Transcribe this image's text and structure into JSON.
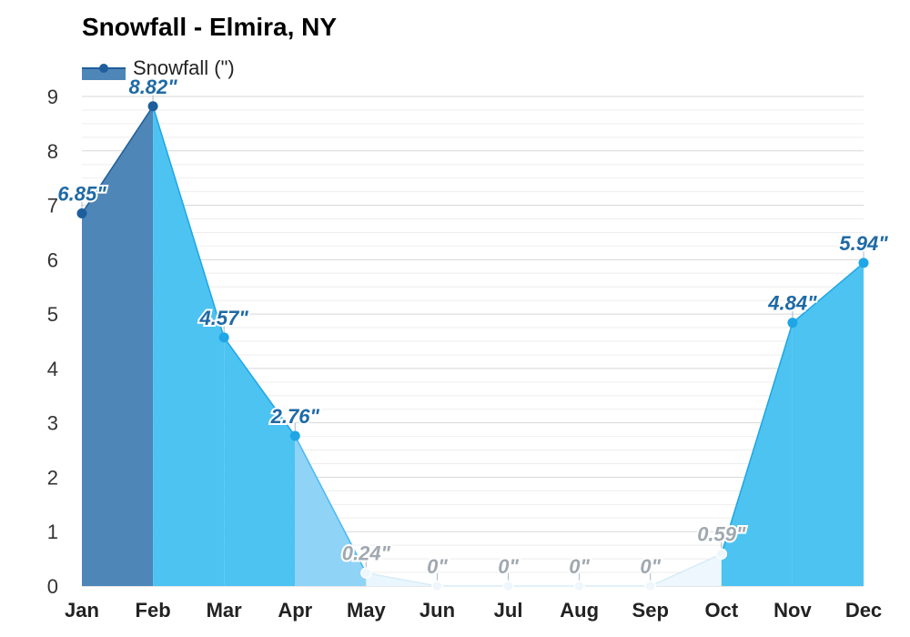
{
  "chart_data": {
    "type": "area",
    "title": "Snowfall - Elmira, NY",
    "xlabel": "",
    "ylabel": "",
    "categories": [
      "Jan",
      "Feb",
      "Mar",
      "Apr",
      "May",
      "Jun",
      "Jul",
      "Aug",
      "Sep",
      "Oct",
      "Nov",
      "Dec"
    ],
    "series": [
      {
        "name": "Snowfall (\")",
        "values": [
          6.85,
          8.82,
          4.57,
          2.76,
          0.24,
          0,
          0,
          0,
          0,
          0.59,
          4.84,
          5.94
        ],
        "data_labels": [
          "6.85\"",
          "8.82\"",
          "4.57\"",
          "2.76\"",
          "0.24\"",
          "0\"",
          "0\"",
          "0\"",
          "0\"",
          "0.59\"",
          "4.84\"",
          "5.94\""
        ]
      }
    ],
    "ylim": [
      0,
      9
    ],
    "yticks": [
      "0",
      "1",
      "2",
      "3",
      "4",
      "5",
      "6",
      "7",
      "8",
      "9"
    ],
    "grid": true,
    "legend_position": "top-left",
    "colors": {
      "fill_by_month": [
        "#4e86b8",
        "#4cc3f1",
        "#4cc3f1",
        "#8fd3f7",
        "#eaf6fd",
        "#eef7fd",
        "#eef7fd",
        "#eef7fd",
        "#eef7fd",
        "#4cc3f1",
        "#4cc3f1",
        "#4cb5ea"
      ],
      "line_by_month": [
        "#1e5e9c",
        "#1ea6e6",
        "#1ea6e6",
        "#4cb8f0",
        "#d6ecf8",
        "#d6ecf8",
        "#d6ecf8",
        "#d6ecf8",
        "#d6ecf8",
        "#1ea6e6",
        "#1ea6e6",
        "#1ea6e6"
      ],
      "label_dark": "#1f6aa5",
      "label_light": "#a0a8b0",
      "grid": "#e0e0e0",
      "legend_fill": "#4e86b8",
      "legend_line": "#1e5e9c"
    }
  }
}
